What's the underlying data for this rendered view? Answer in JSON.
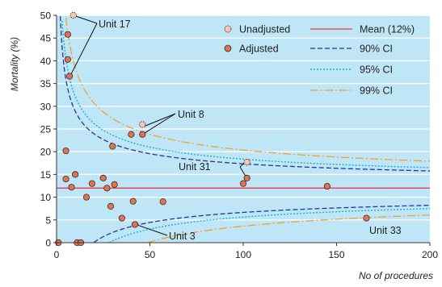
{
  "chart_data": {
    "type": "scatter",
    "title": "",
    "xlabel": "No of procedures",
    "ylabel": "Mortality (%)",
    "xlim": [
      0,
      200
    ],
    "ylim": [
      0,
      50
    ],
    "x_ticks": [
      "0",
      "50",
      "100",
      "150",
      "200"
    ],
    "y_ticks": [
      "0",
      "5",
      "10",
      "15",
      "20",
      "25",
      "30",
      "35",
      "40",
      "45",
      "50"
    ],
    "grid": "horizontal",
    "legend_placement": "top-right",
    "colors": {
      "background": "#bfe6f7",
      "grid": "#ffffff",
      "point": "#d9765a",
      "point_edge": "#4a2418",
      "unadjusted_fill": "#f6c7b3",
      "mean": "#e8404a",
      "ci90": "#2a3590",
      "ci95": "#1ab2c8",
      "ci99": "#f0a030"
    },
    "legend": [
      {
        "label": "Unadjusted",
        "kind": "unadjusted-marker"
      },
      {
        "label": "Adjusted",
        "kind": "adjusted-marker"
      },
      {
        "label": "Mean (12%)",
        "kind": "mean-line"
      },
      {
        "label": "90% CI",
        "kind": "ci90-line"
      },
      {
        "label": "95% CI",
        "kind": "ci95-line"
      },
      {
        "label": "99% CI",
        "kind": "ci99-line"
      }
    ],
    "mean": 12,
    "ci_z": {
      "ci90": 1.645,
      "ci95": 1.96,
      "ci99": 2.576
    },
    "series": [
      {
        "name": "Adjusted",
        "points": [
          [
            1,
            0
          ],
          [
            5,
            20.2
          ],
          [
            5,
            14
          ],
          [
            6,
            45.8
          ],
          [
            6,
            40.3
          ],
          [
            7,
            36.6
          ],
          [
            8,
            12.2
          ],
          [
            10,
            15
          ],
          [
            11,
            0
          ],
          [
            13,
            0
          ],
          [
            16,
            10
          ],
          [
            19,
            13
          ],
          [
            25,
            14.2
          ],
          [
            27,
            12
          ],
          [
            29,
            8
          ],
          [
            30,
            21.2
          ],
          [
            31,
            12.8
          ],
          [
            35,
            5.4
          ],
          [
            40,
            23.8
          ],
          [
            41,
            9.1
          ],
          [
            42,
            4
          ],
          [
            46,
            23.8
          ],
          [
            57,
            9
          ],
          [
            100,
            13
          ],
          [
            102,
            14.2
          ],
          [
            145,
            12.4
          ],
          [
            166,
            5.4
          ]
        ]
      },
      {
        "name": "Unadjusted",
        "points": [
          [
            9,
            50
          ],
          [
            46,
            26
          ],
          [
            102,
            17.7
          ]
        ]
      }
    ],
    "annotations": [
      {
        "label": "Unit 17",
        "point": [
          9,
          50
        ],
        "extra_points": [
          7,
          36.6
        ]
      },
      {
        "label": "Unit 8",
        "point": [
          46,
          26
        ],
        "extra_points": [
          46,
          23.8
        ]
      },
      {
        "label": "Unit 31",
        "point": [
          102,
          17.7
        ],
        "extra_points": [
          102,
          14.2
        ]
      },
      {
        "label": "Unit 3",
        "point": [
          42,
          4
        ],
        "extra_points": null
      },
      {
        "label": "Unit 33",
        "point": [
          166,
          5.4
        ],
        "extra_points": null
      }
    ]
  }
}
